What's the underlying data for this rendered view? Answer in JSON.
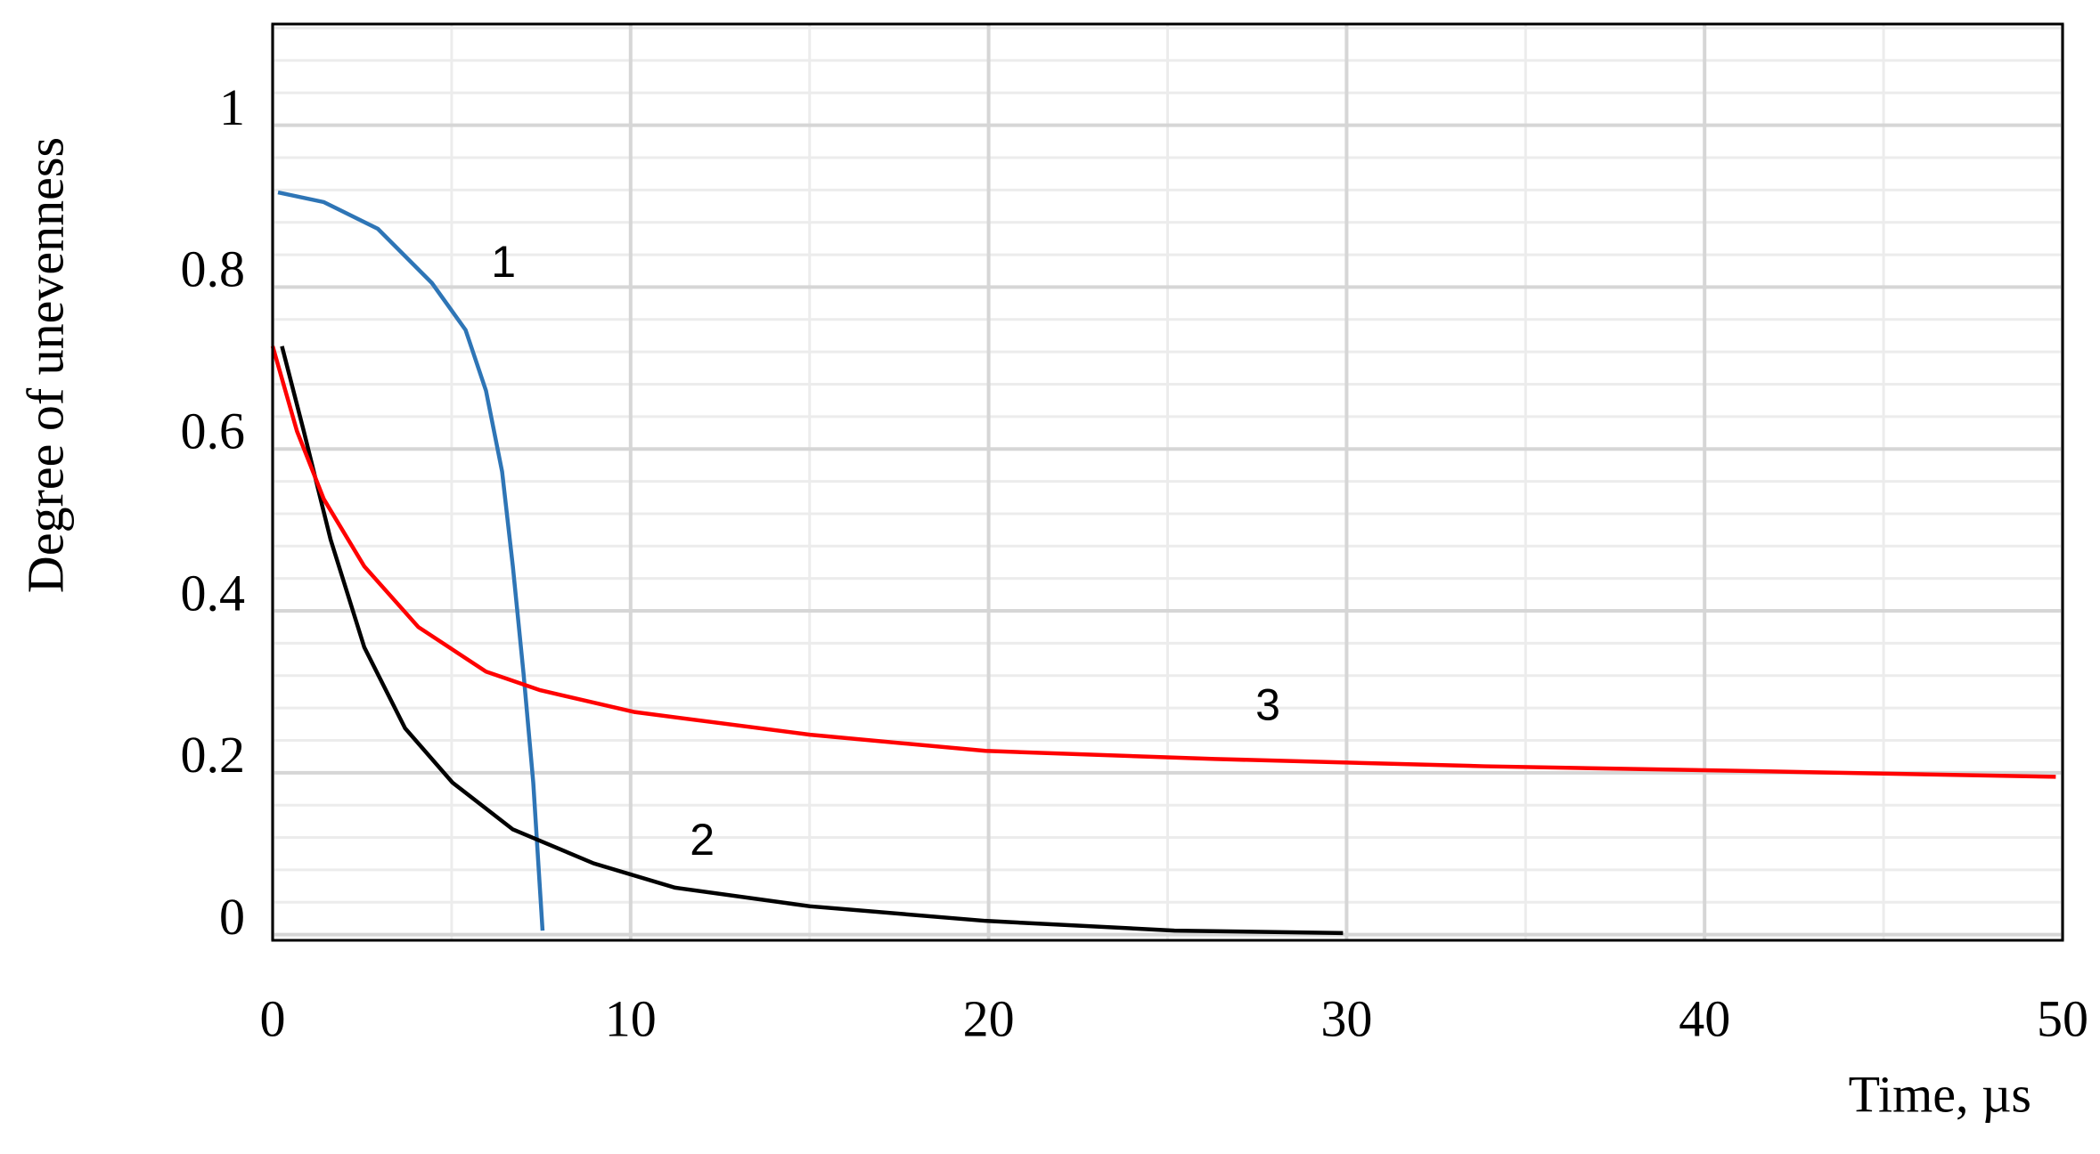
{
  "chart_data": {
    "type": "line",
    "x_label": "Time, µs",
    "y_label": "Degree of unevenness",
    "xlim": [
      0,
      50
    ],
    "ylim": [
      -0.007,
      1.125
    ],
    "xticks": [
      0,
      10,
      20,
      30,
      40,
      50
    ],
    "yticks": [
      0,
      0.2,
      0.4,
      0.6,
      0.8,
      1
    ],
    "grid": true,
    "series": [
      {
        "name": "1",
        "color": "#2e75b6",
        "x": [
          0.15,
          1.43,
          2.94,
          4.45,
          5.39,
          5.96,
          6.41,
          6.71,
          7.01,
          7.28,
          7.54
        ],
        "values": [
          0.917,
          0.905,
          0.872,
          0.805,
          0.747,
          0.672,
          0.572,
          0.455,
          0.322,
          0.188,
          0.005
        ]
      },
      {
        "name": "2",
        "color": "#000000",
        "x": [
          0.26,
          0.87,
          1.62,
          2.56,
          3.7,
          5.02,
          6.71,
          8.97,
          11.24,
          15.01,
          19.91,
          25.19,
          29.9
        ],
        "values": [
          0.727,
          0.622,
          0.488,
          0.355,
          0.255,
          0.188,
          0.13,
          0.088,
          0.058,
          0.035,
          0.017,
          0.005,
          0.002
        ]
      },
      {
        "name": "3",
        "color": "#ff0000",
        "x": [
          0,
          0.68,
          1.43,
          2.56,
          4.07,
          5.96,
          7.47,
          10.11,
          15.01,
          19.91,
          26.32,
          33.86,
          41.4,
          49.81
        ],
        "values": [
          0.727,
          0.622,
          0.538,
          0.455,
          0.38,
          0.325,
          0.302,
          0.275,
          0.247,
          0.227,
          0.217,
          0.208,
          0.202,
          0.195
        ]
      }
    ],
    "annotations": [
      {
        "text": "1",
        "x": 6.45,
        "y": 0.827
      },
      {
        "text": "2",
        "x": 12.0,
        "y": 0.113
      },
      {
        "text": "3",
        "x": 27.8,
        "y": 0.28
      }
    ]
  }
}
